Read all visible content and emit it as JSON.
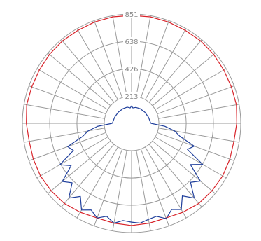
{
  "chart_data": {
    "type": "polar",
    "title": "",
    "radial_ticks": [
      213,
      426,
      638,
      851
    ],
    "radial_tick_labels": [
      "213",
      "426",
      "638",
      "851"
    ],
    "radial_max": 851,
    "angle_step_deg": 10,
    "grid": true,
    "series": [
      {
        "color": "#d8232a",
        "angles_deg": [
          0,
          10,
          20,
          30,
          40,
          50,
          60,
          70,
          80,
          90,
          100,
          110,
          120,
          130,
          140,
          150,
          160,
          170,
          180,
          190,
          200,
          210,
          220,
          230,
          240,
          250,
          260,
          270,
          280,
          290,
          300,
          310,
          320,
          330,
          340,
          350
        ],
        "values": [
          840,
          842,
          840,
          836,
          838,
          835,
          830,
          828,
          830,
          820,
          810,
          815,
          820,
          818,
          815,
          800,
          785,
          790,
          796,
          790,
          785,
          800,
          815,
          818,
          820,
          815,
          810,
          820,
          830,
          828,
          830,
          835,
          838,
          836,
          840,
          842
        ]
      },
      {
        "color": "#1f3f9c",
        "angles_deg": [
          90,
          95,
          100,
          105,
          110,
          115,
          120,
          125,
          130,
          135,
          140,
          145,
          150,
          155,
          160,
          165,
          170,
          175,
          180,
          185,
          190,
          195,
          200,
          205,
          210,
          215,
          220,
          225,
          230,
          235,
          240,
          245,
          250,
          255,
          260,
          265,
          270
        ],
        "values": [
          150,
          260,
          340,
          390,
          520,
          480,
          640,
          560,
          700,
          650,
          760,
          690,
          775,
          740,
          790,
          750,
          760,
          780,
          770,
          760,
          790,
          750,
          785,
          745,
          780,
          695,
          760,
          655,
          705,
          575,
          645,
          500,
          530,
          395,
          345,
          265,
          150
        ]
      },
      {
        "color": "#1f3f9c",
        "angles_deg": [
          270,
          290,
          310,
          330,
          345,
          355,
          0,
          5,
          15,
          30,
          50,
          70,
          90
        ],
        "values": [
          150,
          140,
          135,
          132,
          130,
          120,
          135,
          120,
          128,
          132,
          135,
          140,
          150
        ]
      }
    ]
  }
}
